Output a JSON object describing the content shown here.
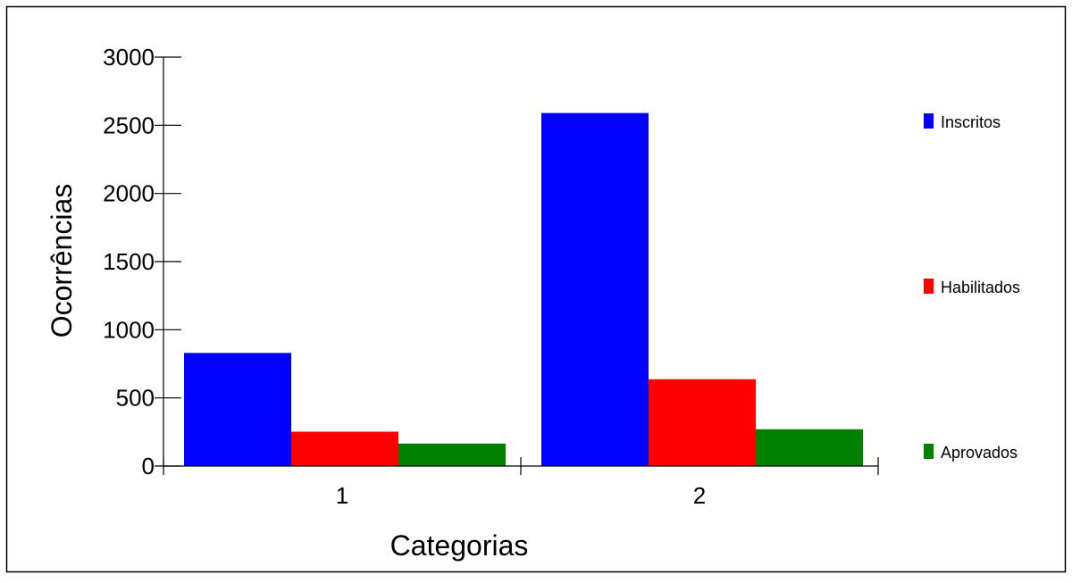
{
  "chart_data": {
    "type": "bar",
    "title": "",
    "xlabel": "Categorias",
    "ylabel": "Ocorrências",
    "categories": [
      "1",
      "2"
    ],
    "series": [
      {
        "name": "Inscritos",
        "values": [
          830,
          2590
        ],
        "color": "#0000ff"
      },
      {
        "name": "Habilitados",
        "values": [
          252,
          637
        ],
        "color": "#ff0000"
      },
      {
        "name": "Aprovados",
        "values": [
          165,
          270
        ],
        "color": "#008000"
      }
    ],
    "yticks": [
      0,
      500,
      1000,
      1500,
      2000,
      2500,
      3000
    ],
    "ylim": [
      0,
      3000
    ],
    "grid": false,
    "legend_position": "right"
  }
}
